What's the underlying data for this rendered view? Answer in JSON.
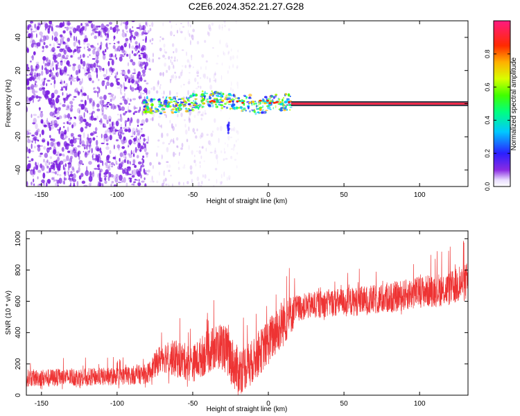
{
  "title": "C2E6.2024.352.21.27.G28",
  "colors": {
    "snr_line": "#ee3333",
    "spectrogram_background": "#7a1fe0",
    "center_band": "#ff2a4a",
    "axes": "#000000"
  },
  "chart_data": [
    {
      "type": "heatmap",
      "title": "C2E6.2024.352.21.27.G28",
      "xlabel": "Height of straight line (km)",
      "ylabel": "Frequency (Hz)",
      "xlim": [
        -160,
        132
      ],
      "ylim": [
        -50,
        50
      ],
      "xticks": [
        -150,
        -100,
        -50,
        0,
        50,
        100
      ],
      "yticks": [
        -40,
        -20,
        0,
        20,
        40
      ],
      "grid": false,
      "colorbar": {
        "label": "Normalized spectral amplitude",
        "range": [
          0.0,
          1.0
        ],
        "ticks": [
          0.0,
          0.2,
          0.4,
          0.6,
          0.8
        ],
        "colormap": "rainbow (violet-blue-cyan-green-yellow-red-magenta)"
      },
      "features": [
        {
          "name": "noise region",
          "x_range": [
            -160,
            -80
          ],
          "freq_range": [
            -50,
            50
          ],
          "amplitude": "low (0.05-0.2)"
        },
        {
          "name": "sparse noise",
          "x_range": [
            -80,
            -20
          ],
          "freq_range": [
            -50,
            50
          ],
          "amplitude": "very low"
        },
        {
          "name": "signal onset",
          "x_range": [
            -82,
            15
          ],
          "freq_range": [
            -5,
            5
          ],
          "amplitude": "0.3-0.8"
        },
        {
          "name": "stable carrier",
          "x_range": [
            15,
            132
          ],
          "freq_center": 0,
          "amplitude": "~1.0"
        },
        {
          "name": "spur",
          "x": -27,
          "freq_range": [
            -18,
            -11
          ],
          "amplitude": "~0.2"
        }
      ]
    },
    {
      "type": "line",
      "xlabel": "Height of straight line (km)",
      "ylabel": "SNR (10 * v/v)",
      "xlim": [
        -160,
        132
      ],
      "ylim": [
        0,
        1050
      ],
      "xticks": [
        -150,
        -100,
        -50,
        0,
        50,
        100
      ],
      "yticks": [
        0,
        200,
        400,
        600,
        800,
        1000
      ],
      "grid": false,
      "envelope": {
        "x": [
          -160,
          -130,
          -100,
          -80,
          -70,
          -60,
          -50,
          -40,
          -30,
          -20,
          -10,
          0,
          10,
          20,
          40,
          60,
          80,
          100,
          120,
          132
        ],
        "mean": [
          110,
          115,
          120,
          135,
          250,
          230,
          200,
          280,
          320,
          150,
          220,
          340,
          470,
          560,
          590,
          600,
          620,
          660,
          680,
          730
        ],
        "low": [
          30,
          35,
          40,
          50,
          80,
          60,
          30,
          60,
          80,
          20,
          60,
          180,
          300,
          450,
          480,
          490,
          500,
          530,
          560,
          590
        ],
        "high": [
          230,
          240,
          250,
          280,
          450,
          500,
          460,
          580,
          650,
          600,
          560,
          720,
          890,
          760,
          800,
          830,
          850,
          900,
          960,
          1040
        ]
      }
    }
  ]
}
